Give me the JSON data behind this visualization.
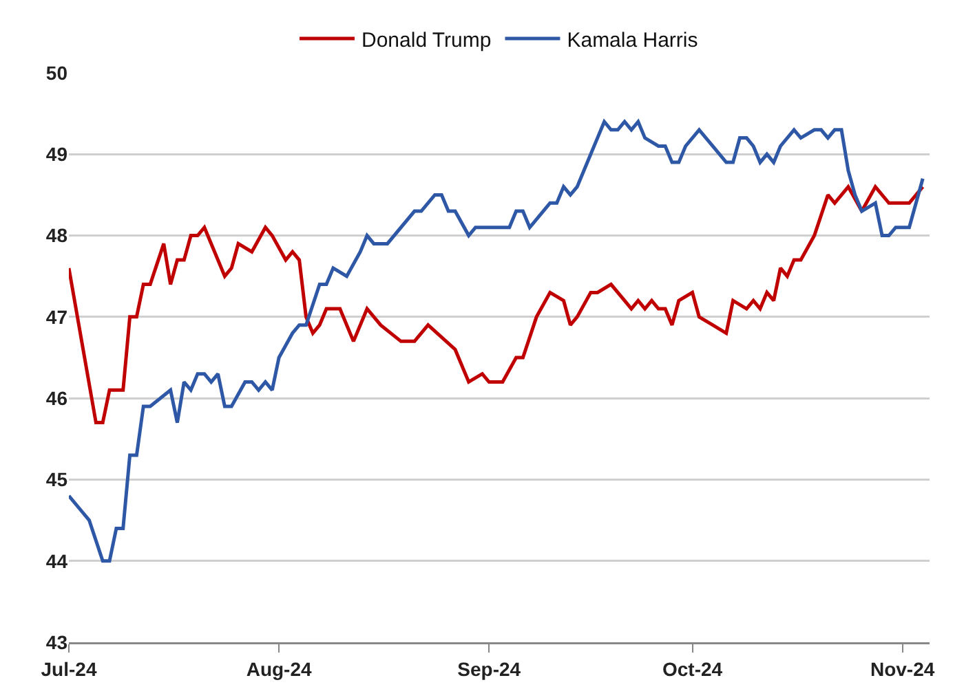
{
  "chart_data": {
    "type": "line",
    "series": [
      {
        "name": "Donald Trump",
        "color": "#c00000",
        "x": [
          "2024-07-01",
          "2024-07-05",
          "2024-07-06",
          "2024-07-07",
          "2024-07-09",
          "2024-07-10",
          "2024-07-11",
          "2024-07-12",
          "2024-07-13",
          "2024-07-15",
          "2024-07-16",
          "2024-07-17",
          "2024-07-18",
          "2024-07-19",
          "2024-07-20",
          "2024-07-21",
          "2024-07-24",
          "2024-07-25",
          "2024-07-26",
          "2024-07-28",
          "2024-07-30",
          "2024-07-31",
          "2024-08-02",
          "2024-08-03",
          "2024-08-04",
          "2024-08-05",
          "2024-08-06",
          "2024-08-07",
          "2024-08-08",
          "2024-08-10",
          "2024-08-12",
          "2024-08-14",
          "2024-08-16",
          "2024-08-19",
          "2024-08-21",
          "2024-08-23",
          "2024-08-27",
          "2024-08-29",
          "2024-08-31",
          "2024-09-01",
          "2024-09-03",
          "2024-09-05",
          "2024-09-06",
          "2024-09-08",
          "2024-09-10",
          "2024-09-12",
          "2024-09-13",
          "2024-09-14",
          "2024-09-16",
          "2024-09-17",
          "2024-09-19",
          "2024-09-21",
          "2024-09-22",
          "2024-09-23",
          "2024-09-24",
          "2024-09-25",
          "2024-09-26",
          "2024-09-27",
          "2024-09-28",
          "2024-09-29",
          "2024-10-01",
          "2024-10-02",
          "2024-10-04",
          "2024-10-06",
          "2024-10-07",
          "2024-10-09",
          "2024-10-10",
          "2024-10-11",
          "2024-10-12",
          "2024-10-13",
          "2024-10-14",
          "2024-10-15",
          "2024-10-16",
          "2024-10-17",
          "2024-10-19",
          "2024-10-21",
          "2024-10-22",
          "2024-10-24",
          "2024-10-26",
          "2024-10-28",
          "2024-10-30",
          "2024-11-02",
          "2024-11-04"
        ],
        "values": [
          47.6,
          45.7,
          45.7,
          46.1,
          46.1,
          47.0,
          47.0,
          47.4,
          47.4,
          47.9,
          47.4,
          47.7,
          47.7,
          48.0,
          48.0,
          48.1,
          47.5,
          47.6,
          47.9,
          47.8,
          48.1,
          48.0,
          47.7,
          47.8,
          47.7,
          47.0,
          46.8,
          46.9,
          47.1,
          47.1,
          46.7,
          47.1,
          46.9,
          46.7,
          46.7,
          46.9,
          46.6,
          46.2,
          46.3,
          46.2,
          46.2,
          46.5,
          46.5,
          47.0,
          47.3,
          47.2,
          46.9,
          47.0,
          47.3,
          47.3,
          47.4,
          47.2,
          47.1,
          47.2,
          47.1,
          47.2,
          47.1,
          47.1,
          46.9,
          47.2,
          47.3,
          47.0,
          46.9,
          46.8,
          47.2,
          47.1,
          47.2,
          47.1,
          47.3,
          47.2,
          47.6,
          47.5,
          47.7,
          47.7,
          48.0,
          48.5,
          48.4,
          48.6,
          48.3,
          48.6,
          48.4,
          48.4,
          48.6
        ]
      },
      {
        "name": "Kamala Harris",
        "color": "#2e58a6",
        "x": [
          "2024-07-01",
          "2024-07-03",
          "2024-07-04",
          "2024-07-06",
          "2024-07-07",
          "2024-07-08",
          "2024-07-09",
          "2024-07-10",
          "2024-07-11",
          "2024-07-12",
          "2024-07-13",
          "2024-07-16",
          "2024-07-17",
          "2024-07-18",
          "2024-07-19",
          "2024-07-20",
          "2024-07-21",
          "2024-07-22",
          "2024-07-23",
          "2024-07-24",
          "2024-07-25",
          "2024-07-27",
          "2024-07-28",
          "2024-07-29",
          "2024-07-30",
          "2024-07-31",
          "2024-08-01",
          "2024-08-03",
          "2024-08-04",
          "2024-08-05",
          "2024-08-07",
          "2024-08-08",
          "2024-08-09",
          "2024-08-11",
          "2024-08-13",
          "2024-08-14",
          "2024-08-15",
          "2024-08-17",
          "2024-08-21",
          "2024-08-22",
          "2024-08-24",
          "2024-08-25",
          "2024-08-26",
          "2024-08-27",
          "2024-08-29",
          "2024-08-30",
          "2024-09-04",
          "2024-09-05",
          "2024-09-06",
          "2024-09-07",
          "2024-09-09",
          "2024-09-10",
          "2024-09-11",
          "2024-09-12",
          "2024-09-13",
          "2024-09-14",
          "2024-09-16",
          "2024-09-17",
          "2024-09-18",
          "2024-09-19",
          "2024-09-20",
          "2024-09-21",
          "2024-09-22",
          "2024-09-23",
          "2024-09-24",
          "2024-09-26",
          "2024-09-27",
          "2024-09-28",
          "2024-09-29",
          "2024-09-30",
          "2024-10-02",
          "2024-10-04",
          "2024-10-06",
          "2024-10-07",
          "2024-10-08",
          "2024-10-09",
          "2024-10-10",
          "2024-10-11",
          "2024-10-12",
          "2024-10-13",
          "2024-10-14",
          "2024-10-16",
          "2024-10-17",
          "2024-10-19",
          "2024-10-20",
          "2024-10-21",
          "2024-10-22",
          "2024-10-23",
          "2024-10-24",
          "2024-10-25",
          "2024-10-26",
          "2024-10-28",
          "2024-10-29",
          "2024-10-30",
          "2024-10-31",
          "2024-11-02",
          "2024-11-04"
        ],
        "values": [
          44.8,
          44.6,
          44.5,
          44.0,
          44.0,
          44.4,
          44.4,
          45.3,
          45.3,
          45.9,
          45.9,
          46.1,
          45.7,
          46.2,
          46.1,
          46.3,
          46.3,
          46.2,
          46.3,
          45.9,
          45.9,
          46.2,
          46.2,
          46.1,
          46.2,
          46.1,
          46.5,
          46.8,
          46.9,
          46.9,
          47.4,
          47.4,
          47.6,
          47.5,
          47.8,
          48.0,
          47.9,
          47.9,
          48.3,
          48.3,
          48.5,
          48.5,
          48.3,
          48.3,
          48.0,
          48.1,
          48.1,
          48.3,
          48.3,
          48.1,
          48.3,
          48.4,
          48.4,
          48.6,
          48.5,
          48.6,
          49.0,
          49.2,
          49.4,
          49.3,
          49.3,
          49.4,
          49.3,
          49.4,
          49.2,
          49.1,
          49.1,
          48.9,
          48.9,
          49.1,
          49.3,
          49.1,
          48.9,
          48.9,
          49.2,
          49.2,
          49.1,
          48.9,
          49.0,
          48.9,
          49.1,
          49.3,
          49.2,
          49.3,
          49.3,
          49.2,
          49.3,
          49.3,
          48.8,
          48.5,
          48.3,
          48.4,
          48.0,
          48.0,
          48.1,
          48.1,
          48.7
        ]
      }
    ],
    "xlim": [
      "2024-07-01",
      "2024-11-05"
    ],
    "xticks": [
      {
        "value": "2024-07-01",
        "label": "Jul-24"
      },
      {
        "value": "2024-08-01",
        "label": "Aug-24"
      },
      {
        "value": "2024-09-01",
        "label": "Sep-24"
      },
      {
        "value": "2024-10-01",
        "label": "Oct-24"
      },
      {
        "value": "2024-11-01",
        "label": "Nov-24"
      }
    ],
    "ylim": [
      43,
      50
    ],
    "yticks": [
      43,
      44,
      45,
      46,
      47,
      48,
      49,
      50
    ],
    "grid": "y",
    "legend": "top",
    "marker": "none",
    "line_style": "solid"
  }
}
